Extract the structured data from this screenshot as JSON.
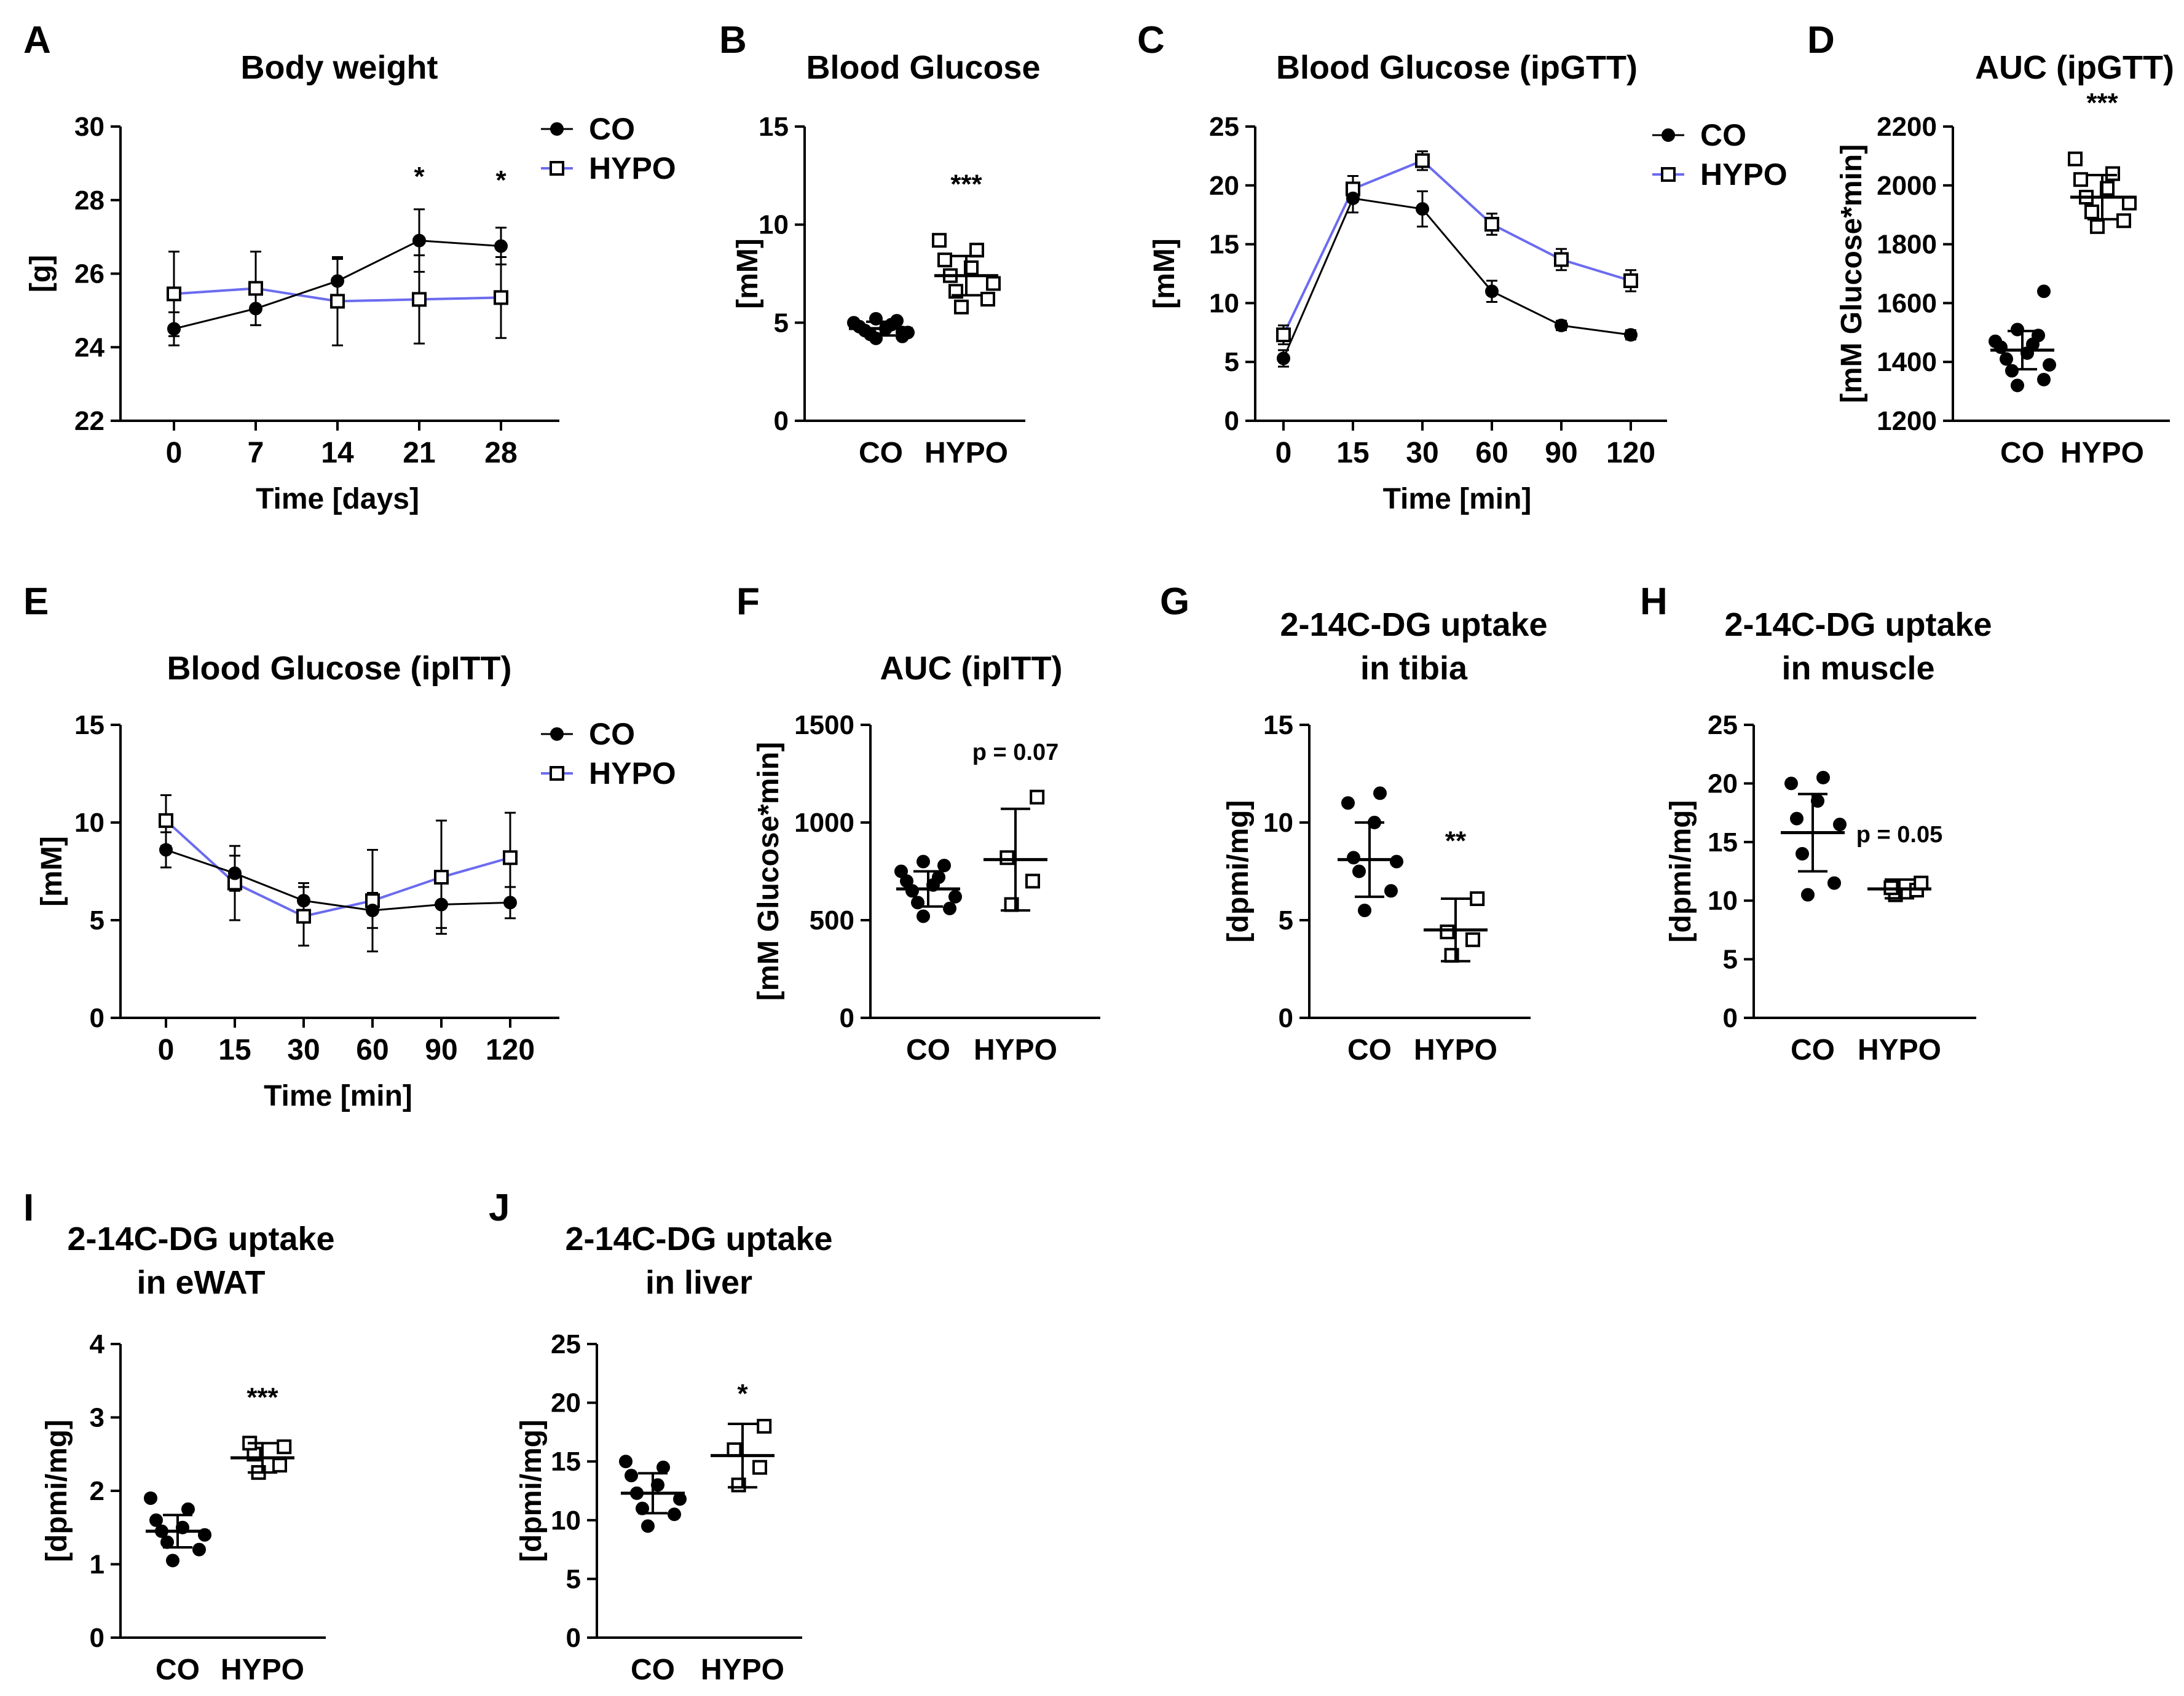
{
  "colors": {
    "co": "#000000",
    "hypo": "#6b6bf0",
    "axis": "#000000"
  },
  "chart_data": [
    {
      "id": "A",
      "label": "A",
      "type": "line",
      "title": [
        "Body weight"
      ],
      "xlabel": "Time [days]",
      "ylabel": "[g]",
      "categories": [
        "0",
        "7",
        "14",
        "21",
        "28"
      ],
      "ylim": [
        22,
        30
      ],
      "yticks": [
        22,
        24,
        26,
        28,
        30
      ],
      "legend": [
        "CO",
        "HYPO"
      ],
      "series": [
        {
          "name": "CO",
          "values": [
            24.5,
            25.05,
            25.8,
            26.9,
            26.75
          ],
          "err": [
            0.45,
            0.45,
            0.6,
            0.85,
            0.5
          ]
        },
        {
          "name": "HYPO",
          "values": [
            25.45,
            25.6,
            25.25,
            25.3,
            25.35
          ],
          "err": [
            1.15,
            1.0,
            1.2,
            1.2,
            1.1
          ]
        }
      ],
      "annotations": [
        {
          "i": 3,
          "y": 28.4,
          "text": "*"
        },
        {
          "i": 4,
          "y": 28.3,
          "text": "*"
        }
      ]
    },
    {
      "id": "B",
      "label": "B",
      "type": "scatter",
      "title": [
        "Blood Glucose"
      ],
      "ylabel": "[mM]",
      "categories": [
        "CO",
        "HYPO"
      ],
      "ylim": [
        0,
        15
      ],
      "yticks": [
        0,
        5,
        10,
        15
      ],
      "groups": [
        {
          "name": "CO",
          "mean": 4.7,
          "sd": 0.35,
          "points": [
            4.2,
            4.3,
            4.4,
            4.5,
            4.6,
            4.7,
            4.8,
            4.9,
            5.0,
            5.1,
            5.2,
            4.5
          ]
        },
        {
          "name": "HYPO",
          "mean": 7.4,
          "sd": 1.0,
          "points": [
            5.8,
            6.2,
            6.6,
            7.0,
            7.4,
            7.8,
            8.2,
            8.7,
            9.2
          ]
        }
      ],
      "annotation": {
        "text": "***",
        "y": 11.6
      }
    },
    {
      "id": "C",
      "label": "C",
      "type": "line",
      "title": [
        "Blood Glucose (ipGTT)"
      ],
      "xlabel": "Time [min]",
      "ylabel": "[mM]",
      "categories": [
        "0",
        "15",
        "30",
        "60",
        "90",
        "120"
      ],
      "ylim": [
        0,
        25
      ],
      "yticks": [
        0,
        5,
        10,
        15,
        20,
        25
      ],
      "legend": [
        "CO",
        "HYPO"
      ],
      "series": [
        {
          "name": "CO",
          "values": [
            5.3,
            18.9,
            18.0,
            11.0,
            8.1,
            7.3
          ],
          "err": [
            0.7,
            1.2,
            1.5,
            0.9,
            0.4,
            0.4
          ]
        },
        {
          "name": "HYPO",
          "values": [
            7.3,
            19.7,
            22.1,
            16.7,
            13.7,
            11.9
          ],
          "err": [
            0.8,
            1.1,
            0.8,
            0.9,
            0.9,
            0.9
          ]
        }
      ]
    },
    {
      "id": "D",
      "label": "D",
      "type": "scatter",
      "title": [
        "AUC (ipGTT)"
      ],
      "ylabel": "[mM Glucose*min]",
      "categories": [
        "CO",
        "HYPO"
      ],
      "ylim": [
        1200,
        2200
      ],
      "yticks": [
        1200,
        1400,
        1600,
        1800,
        2000,
        2200
      ],
      "groups": [
        {
          "name": "CO",
          "mean": 1440,
          "sd": 65,
          "points": [
            1320,
            1340,
            1370,
            1390,
            1410,
            1430,
            1450,
            1460,
            1470,
            1490,
            1510,
            1640
          ]
        },
        {
          "name": "HYPO",
          "mean": 1960,
          "sd": 75,
          "points": [
            1860,
            1880,
            1910,
            1940,
            1960,
            1990,
            2020,
            2040,
            2090
          ]
        }
      ],
      "annotation": {
        "text": "***",
        "y": 2250
      }
    },
    {
      "id": "E",
      "label": "E",
      "type": "line",
      "title": [
        "Blood Glucose (ipITT)"
      ],
      "xlabel": "Time [min]",
      "ylabel": "[mM]",
      "categories": [
        "0",
        "15",
        "30",
        "60",
        "90",
        "120"
      ],
      "ylim": [
        0,
        15
      ],
      "yticks": [
        0,
        5,
        10,
        15
      ],
      "legend": [
        "CO",
        "HYPO"
      ],
      "series": [
        {
          "name": "CO",
          "values": [
            8.6,
            7.4,
            6.0,
            5.5,
            5.8,
            5.9
          ],
          "err": [
            0.9,
            0.9,
            0.9,
            0.9,
            1.2,
            0.8
          ]
        },
        {
          "name": "HYPO",
          "values": [
            10.1,
            6.9,
            5.2,
            6.0,
            7.2,
            8.2
          ],
          "err": [
            1.3,
            1.9,
            1.5,
            2.6,
            2.9,
            2.3
          ]
        }
      ]
    },
    {
      "id": "F",
      "label": "F",
      "type": "scatter",
      "title": [
        "AUC (ipITT)"
      ],
      "ylabel": "[mM Glucose*min]",
      "categories": [
        "CO",
        "HYPO"
      ],
      "ylim": [
        0,
        1500
      ],
      "yticks": [
        0,
        500,
        1000,
        1500
      ],
      "groups": [
        {
          "name": "CO",
          "mean": 660,
          "sd": 90,
          "points": [
            520,
            560,
            590,
            620,
            650,
            680,
            700,
            720,
            750,
            780,
            800
          ]
        },
        {
          "name": "HYPO",
          "mean": 810,
          "sd": 260,
          "points": [
            580,
            700,
            820,
            1130
          ]
        }
      ],
      "annotation": {
        "text": "p = 0.07",
        "y": 1320
      }
    },
    {
      "id": "G",
      "label": "G",
      "type": "scatter",
      "title": [
        "2-14C-DG uptake",
        "in tibia"
      ],
      "ylabel": "[dpmi/mg]",
      "categories": [
        "CO",
        "HYPO"
      ],
      "ylim": [
        0,
        15
      ],
      "yticks": [
        0,
        5,
        10,
        15
      ],
      "groups": [
        {
          "name": "CO",
          "mean": 8.1,
          "sd": 1.9,
          "points": [
            5.5,
            6.5,
            7.5,
            8.0,
            8.2,
            10.0,
            11.0,
            11.5
          ]
        },
        {
          "name": "HYPO",
          "mean": 4.5,
          "sd": 1.6,
          "points": [
            3.2,
            4.0,
            4.4,
            6.1
          ]
        }
      ],
      "annotation": {
        "text": "**",
        "y": 8.6
      }
    },
    {
      "id": "H",
      "label": "H",
      "type": "scatter",
      "title": [
        "2-14C-DG uptake",
        "in muscle"
      ],
      "ylabel": "[dpmi/mg]",
      "categories": [
        "CO",
        "HYPO"
      ],
      "ylim": [
        0,
        25
      ],
      "yticks": [
        0,
        5,
        10,
        15,
        20,
        25
      ],
      "groups": [
        {
          "name": "CO",
          "mean": 15.8,
          "sd": 3.3,
          "points": [
            10.5,
            11.5,
            14.0,
            16.5,
            17.0,
            18.5,
            20.0,
            20.5
          ]
        },
        {
          "name": "HYPO",
          "mean": 11.0,
          "sd": 0.8,
          "points": [
            10.5,
            10.9,
            11.1,
            11.5
          ]
        }
      ],
      "annotation": {
        "text": "p = 0.05",
        "y": 15.0
      }
    },
    {
      "id": "I",
      "label": "I",
      "type": "scatter",
      "title": [
        "2-14C-DG uptake",
        "in eWAT"
      ],
      "ylabel": "[dpmi/mg]",
      "categories": [
        "CO",
        "HYPO"
      ],
      "ylim": [
        0,
        4
      ],
      "yticks": [
        0,
        1,
        2,
        3,
        4
      ],
      "groups": [
        {
          "name": "CO",
          "mean": 1.45,
          "sd": 0.22,
          "points": [
            1.05,
            1.2,
            1.3,
            1.4,
            1.45,
            1.5,
            1.6,
            1.75,
            1.9
          ]
        },
        {
          "name": "HYPO",
          "mean": 2.45,
          "sd": 0.2,
          "points": [
            2.25,
            2.35,
            2.5,
            2.6,
            2.65
          ]
        }
      ],
      "annotation": {
        "text": "***",
        "y": 3.15
      }
    },
    {
      "id": "J",
      "label": "J",
      "type": "scatter",
      "title": [
        "2-14C-DG uptake",
        "in liver"
      ],
      "ylabel": "[dpmi/mg]",
      "categories": [
        "CO",
        "HYPO"
      ],
      "ylim": [
        0,
        25
      ],
      "yticks": [
        0,
        5,
        10,
        15,
        20,
        25
      ],
      "groups": [
        {
          "name": "CO",
          "mean": 12.3,
          "sd": 1.7,
          "points": [
            9.5,
            10.5,
            11.0,
            11.8,
            12.3,
            13.0,
            13.8,
            14.5,
            15.0
          ]
        },
        {
          "name": "HYPO",
          "mean": 15.5,
          "sd": 2.7,
          "points": [
            13.0,
            14.5,
            16.0,
            18.0
          ]
        }
      ],
      "annotation": {
        "text": "*",
        "y": 20.0
      }
    }
  ]
}
